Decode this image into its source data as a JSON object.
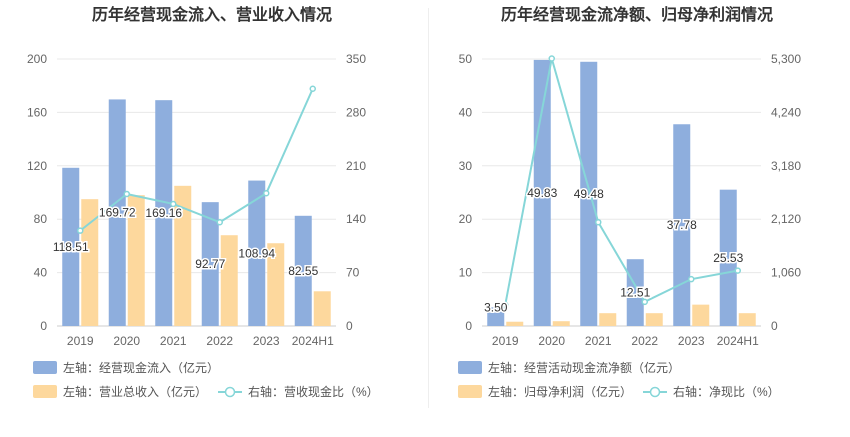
{
  "chart_data": [
    {
      "type": "bar",
      "title": "历年经营现金流入、营业收入情况",
      "categories": [
        "2019",
        "2020",
        "2021",
        "2022",
        "2023",
        "2024H1"
      ],
      "left_axis": {
        "ticks": [
          "0",
          "40",
          "80",
          "120",
          "160",
          "200"
        ],
        "ylim": [
          0,
          200
        ]
      },
      "right_axis": {
        "ticks": [
          "0",
          "70",
          "140",
          "210",
          "280",
          "350"
        ],
        "ylim": [
          0,
          350
        ]
      },
      "grid": true,
      "legend_position": "bottom",
      "series": [
        {
          "name": "左轴：经营现金流入（亿元）",
          "type": "bar",
          "axis": "left",
          "color": "#8eaedd",
          "values": [
            118.51,
            169.72,
            169.16,
            92.77,
            108.94,
            82.55
          ],
          "labels": [
            "118.51",
            "169.72",
            "169.16",
            "92.77",
            "108.94",
            "82.55"
          ]
        },
        {
          "name": "左轴：营业总收入（亿元）",
          "type": "bar",
          "axis": "left",
          "color": "#fdd89d",
          "values": [
            95,
            98,
            105,
            68,
            62,
            26
          ]
        },
        {
          "name": "右轴：营收现金比（%）",
          "type": "line",
          "axis": "right",
          "color": "#86d6d8",
          "values": [
            125,
            173,
            160,
            136,
            174,
            311
          ]
        }
      ]
    },
    {
      "type": "bar",
      "title": "历年经营现金流净额、归母净利润情况",
      "categories": [
        "2019",
        "2020",
        "2021",
        "2022",
        "2023",
        "2024H1"
      ],
      "left_axis": {
        "ticks": [
          "0",
          "10",
          "20",
          "30",
          "40",
          "50"
        ],
        "ylim": [
          0,
          50
        ]
      },
      "right_axis": {
        "ticks": [
          "0",
          "1,060",
          "2,120",
          "3,180",
          "4,240",
          "5,300"
        ],
        "ylim": [
          0,
          5300
        ]
      },
      "grid": true,
      "legend_position": "bottom",
      "series": [
        {
          "name": "左轴：经营活动现金流净额（亿元）",
          "type": "bar",
          "axis": "left",
          "color": "#8eaedd",
          "values": [
            3.5,
            49.83,
            49.48,
            12.51,
            37.78,
            25.53
          ],
          "labels": [
            "3.50",
            "49.83",
            "49.48",
            "12.51",
            "37.78",
            "25.53"
          ]
        },
        {
          "name": "左轴：归母净利润（亿元）",
          "type": "bar",
          "axis": "left",
          "color": "#fdd89d",
          "values": [
            0.8,
            0.9,
            2.4,
            2.4,
            4.0,
            2.4
          ]
        },
        {
          "name": "右轴：净现比（%）",
          "type": "line",
          "axis": "right",
          "color": "#86d6d8",
          "values": [
            420,
            5310,
            2060,
            480,
            930,
            1100
          ]
        }
      ]
    }
  ]
}
